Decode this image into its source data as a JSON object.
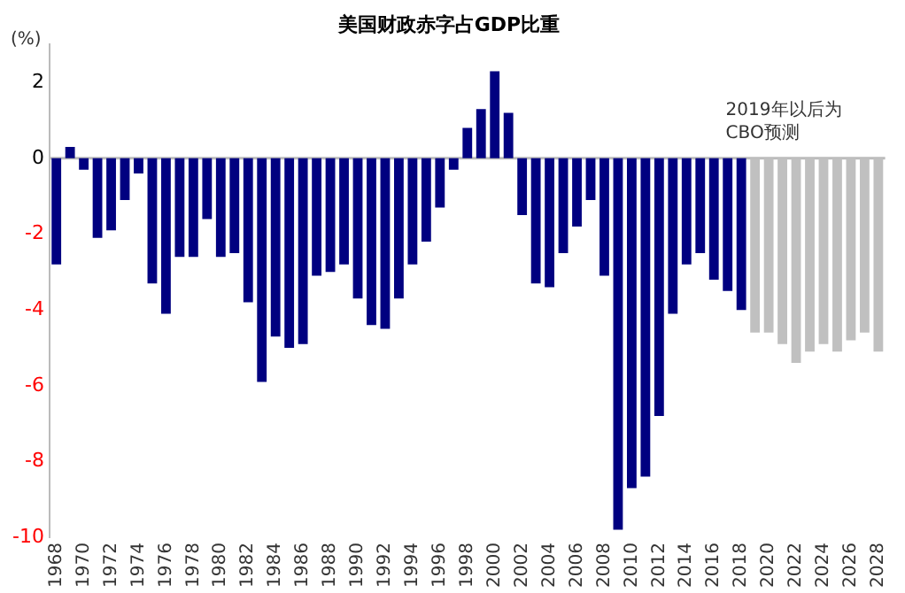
{
  "chart_data": {
    "type": "bar",
    "title": "美国财政赤字占GDP比重",
    "ylabel": "(%)",
    "annotations": [
      "2019年以后为\nCBO预测"
    ],
    "categories": [
      "1968",
      null,
      "1970",
      null,
      "1972",
      null,
      "1974",
      null,
      "1976",
      null,
      "1978",
      null,
      "1980",
      null,
      "1982",
      null,
      "1984",
      null,
      "1986",
      null,
      "1988",
      null,
      "1990",
      null,
      "1992",
      null,
      "1994",
      null,
      "1996",
      null,
      "1998",
      null,
      "2000",
      null,
      "2002",
      null,
      "2004",
      null,
      "2006",
      null,
      "2008",
      null,
      "2010",
      null,
      "2012",
      null,
      "2014",
      null,
      "2016",
      null,
      "2018",
      null,
      "2020",
      null,
      "2022",
      null,
      "2024",
      null,
      "2026",
      null,
      "2028"
    ],
    "values": [
      -2.8,
      0.3,
      -0.3,
      -2.1,
      -1.9,
      -1.1,
      -0.4,
      -3.3,
      -4.1,
      -2.6,
      -2.6,
      -1.6,
      -2.6,
      -2.5,
      -3.8,
      -5.9,
      -4.7,
      -5.0,
      -4.9,
      -3.1,
      -3.0,
      -2.8,
      -3.7,
      -4.4,
      -4.5,
      -3.7,
      -2.8,
      -2.2,
      -1.3,
      -0.3,
      0.8,
      1.3,
      2.3,
      1.2,
      -1.5,
      -3.3,
      -3.4,
      -2.5,
      -1.8,
      -1.1,
      -3.1,
      -9.8,
      -8.7,
      -8.4,
      -6.8,
      -4.1,
      -2.8,
      -2.5,
      -3.2,
      -3.5,
      -4.0,
      -4.6,
      -4.6,
      -4.9,
      -5.4,
      -5.1,
      -4.9,
      -5.1,
      -4.8,
      -4.6,
      -5.1
    ],
    "colors": [
      "#000080",
      "#000080",
      "#000080",
      "#000080",
      "#000080",
      "#000080",
      "#000080",
      "#000080",
      "#000080",
      "#000080",
      "#000080",
      "#000080",
      "#000080",
      "#000080",
      "#000080",
      "#000080",
      "#000080",
      "#000080",
      "#000080",
      "#000080",
      "#000080",
      "#000080",
      "#000080",
      "#000080",
      "#000080",
      "#000080",
      "#000080",
      "#000080",
      "#000080",
      "#000080",
      "#000080",
      "#000080",
      "#000080",
      "#000080",
      "#000080",
      "#000080",
      "#000080",
      "#000080",
      "#000080",
      "#000080",
      "#000080",
      "#000080",
      "#000080",
      "#000080",
      "#000080",
      "#000080",
      "#000080",
      "#000080",
      "#000080",
      "#000080",
      "#000080",
      "#c0c0c0",
      "#c0c0c0",
      "#c0c0c0",
      "#c0c0c0",
      "#c0c0c0",
      "#c0c0c0",
      "#c0c0c0",
      "#c0c0c0",
      "#c0c0c0",
      "#c0c0c0"
    ],
    "ylim": [
      -10,
      3
    ],
    "yticks": [
      -10,
      -8,
      -6,
      -4,
      -2,
      0,
      2
    ],
    "ref_lines": [
      {
        "axis": "y",
        "value": 0,
        "color": "#bbbbbb"
      }
    ],
    "legend": false
  }
}
